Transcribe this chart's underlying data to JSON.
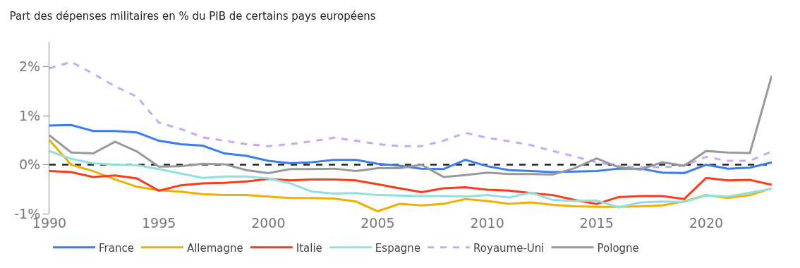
{
  "chart_data": {
    "type": "line",
    "title": "Part des dépenses militaires en % du PIB de certains pays européens",
    "x": [
      1990,
      1991,
      1992,
      1993,
      1994,
      1995,
      1996,
      1997,
      1998,
      1999,
      2000,
      2001,
      2002,
      2003,
      2004,
      2005,
      2006,
      2007,
      2008,
      2009,
      2010,
      2011,
      2012,
      2013,
      2014,
      2015,
      2016,
      2017,
      2018,
      2019,
      2020,
      2021,
      2022,
      2023
    ],
    "series": [
      {
        "name": "France",
        "color": "#3b7cf0",
        "line_style": "solid",
        "values": [
          0.8,
          0.81,
          0.69,
          0.69,
          0.66,
          0.49,
          0.42,
          0.39,
          0.23,
          0.18,
          0.08,
          0.03,
          0.05,
          0.1,
          0.1,
          0.02,
          -0.02,
          -0.08,
          -0.09,
          0.1,
          -0.03,
          -0.11,
          -0.13,
          -0.15,
          -0.14,
          -0.13,
          -0.08,
          -0.08,
          -0.16,
          -0.17,
          0.0,
          -0.08,
          -0.06,
          0.05
        ]
      },
      {
        "name": "Allemagne",
        "color": "#f0b000",
        "line_style": "solid",
        "values": [
          0.5,
          0.0,
          -0.13,
          -0.3,
          -0.45,
          -0.52,
          -0.55,
          -0.6,
          -0.62,
          -0.62,
          -0.65,
          -0.68,
          -0.68,
          -0.69,
          -0.75,
          -0.95,
          -0.8,
          -0.83,
          -0.8,
          -0.7,
          -0.74,
          -0.8,
          -0.77,
          -0.82,
          -0.85,
          -0.86,
          -0.86,
          -0.85,
          -0.83,
          -0.75,
          -0.62,
          -0.68,
          -0.62,
          -0.48
        ]
      },
      {
        "name": "Italie",
        "color": "#ff3a1a",
        "line_style": "solid",
        "values": [
          -0.13,
          -0.15,
          -0.25,
          -0.22,
          -0.28,
          -0.53,
          -0.42,
          -0.38,
          -0.37,
          -0.34,
          -0.29,
          -0.32,
          -0.3,
          -0.3,
          -0.32,
          -0.4,
          -0.48,
          -0.56,
          -0.48,
          -0.46,
          -0.51,
          -0.53,
          -0.58,
          -0.62,
          -0.72,
          -0.8,
          -0.66,
          -0.64,
          -0.64,
          -0.7,
          -0.27,
          -0.32,
          -0.31,
          -0.41
        ]
      },
      {
        "name": "Espagne",
        "color": "#90e0e0",
        "line_style": "solid",
        "values": [
          0.28,
          0.12,
          0.03,
          0.0,
          -0.01,
          -0.09,
          -0.18,
          -0.27,
          -0.24,
          -0.24,
          -0.28,
          -0.38,
          -0.55,
          -0.59,
          -0.58,
          -0.62,
          -0.63,
          -0.64,
          -0.64,
          -0.65,
          -0.62,
          -0.67,
          -0.57,
          -0.72,
          -0.74,
          -0.73,
          -0.87,
          -0.77,
          -0.75,
          -0.76,
          -0.63,
          -0.65,
          -0.57,
          -0.49
        ]
      },
      {
        "name": "Royaume-Uni",
        "color": "#c8a8f8",
        "line_style": "dashed",
        "values": [
          1.97,
          2.1,
          1.86,
          1.6,
          1.39,
          0.86,
          0.73,
          0.56,
          0.49,
          0.42,
          0.38,
          0.42,
          0.48,
          0.55,
          0.49,
          0.42,
          0.38,
          0.38,
          0.49,
          0.65,
          0.55,
          0.48,
          0.4,
          0.28,
          0.17,
          0.05,
          -0.03,
          -0.05,
          -0.05,
          -0.02,
          0.16,
          0.08,
          0.08,
          0.27
        ]
      },
      {
        "name": "Pologne",
        "color": "#999999",
        "line_style": "solid",
        "values": [
          0.6,
          0.25,
          0.23,
          0.47,
          0.27,
          -0.04,
          -0.03,
          0.02,
          0.01,
          -0.11,
          -0.17,
          -0.09,
          -0.09,
          -0.08,
          -0.13,
          -0.07,
          -0.07,
          0.0,
          -0.25,
          -0.21,
          -0.16,
          -0.19,
          -0.19,
          -0.2,
          -0.07,
          0.13,
          -0.05,
          -0.1,
          0.05,
          -0.02,
          0.28,
          0.25,
          0.24,
          1.82
        ]
      }
    ],
    "xlim": [
      1990,
      2023
    ],
    "xticks": [
      1990,
      1995,
      2000,
      2005,
      2010,
      2015,
      2020
    ],
    "ylim": [
      -1,
      2.5
    ],
    "yticks": [
      {
        "value": -1,
        "label": "-1%"
      },
      {
        "value": 0,
        "label": "0%"
      },
      {
        "value": 1,
        "label": "1%"
      },
      {
        "value": 2,
        "label": "2%"
      }
    ],
    "ref_lines": [
      {
        "axis": "y",
        "value": 0,
        "color": "#222222",
        "line_style": "dashed"
      }
    ],
    "grid": false,
    "legend": "bottom",
    "marker": "none"
  }
}
